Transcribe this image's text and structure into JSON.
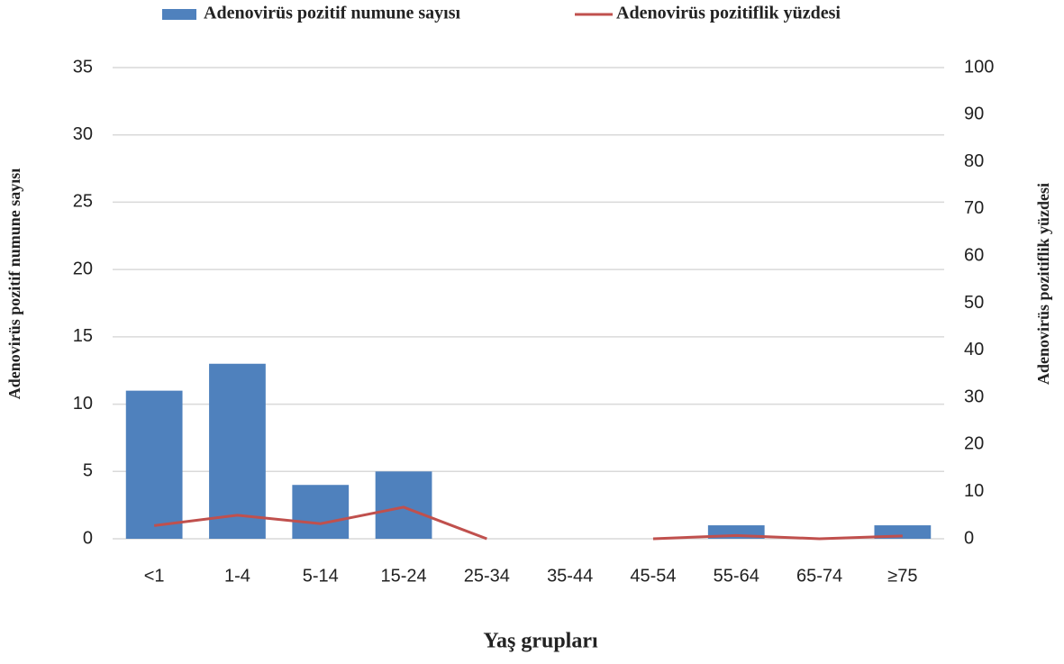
{
  "chart_data": {
    "type": "bar",
    "x_label": "Yaş grupları",
    "y_label": "Adenovirüs pozitif numune sayısı",
    "y2_label": "Adenovirüs pozitiflik yüzdesi",
    "categories": [
      "<1",
      "1-4",
      "5-14",
      "15-24",
      "25-34",
      "35-44",
      "45-54",
      "55-64",
      "65-74",
      "≥75"
    ],
    "series": [
      {
        "name": "Adenovirüs pozitif numune sayısı",
        "type": "bar",
        "color": "#4f81bd",
        "values": [
          11,
          13,
          4,
          5,
          0,
          0,
          0,
          1,
          0,
          1
        ]
      },
      {
        "name": "Adenovirüs pozitiflik yüzdesi",
        "type": "line",
        "axis": "y2",
        "color": "#c0504d",
        "values": [
          2.8,
          5,
          3.2,
          6.7,
          0,
          null,
          0,
          0.7,
          0,
          0.6
        ]
      }
    ],
    "ylim": [
      0,
      35
    ],
    "yticks": [
      0,
      5,
      10,
      15,
      20,
      25,
      30,
      35
    ],
    "y2lim": [
      0,
      100
    ],
    "y2ticks": [
      0,
      10,
      20,
      30,
      40,
      50,
      60,
      70,
      80,
      90,
      100
    ],
    "grid": true,
    "legend": "top"
  }
}
